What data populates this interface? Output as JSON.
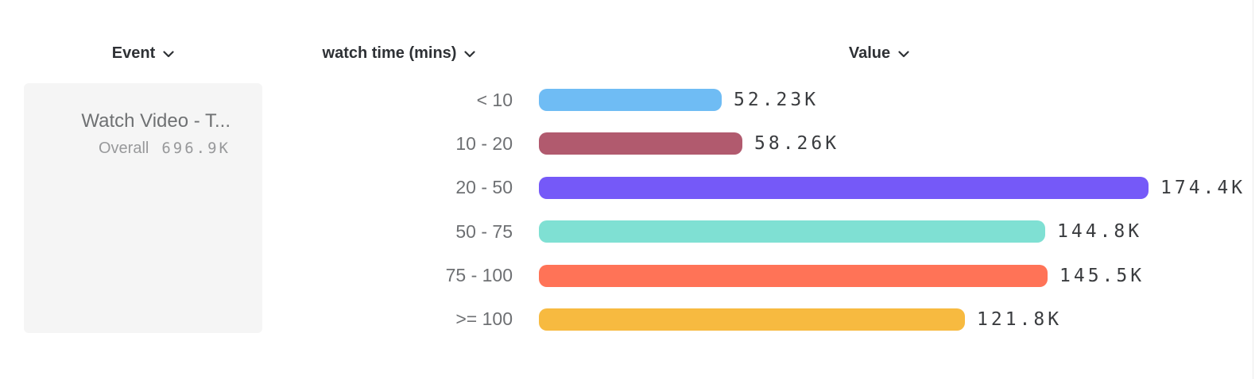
{
  "header": {
    "columns": [
      {
        "label": "Event"
      },
      {
        "label": "watch time (mins)"
      },
      {
        "label": "Value"
      }
    ]
  },
  "event_panel": {
    "title": "Watch Video - T...",
    "overall_label": "Overall",
    "overall_value": "696.9K"
  },
  "chart_data": {
    "type": "bar",
    "orientation": "horizontal",
    "title": "",
    "xlabel": "Value",
    "ylabel": "watch time (mins)",
    "unit": "K",
    "categories": [
      "< 10",
      "10 - 20",
      "20 - 50",
      "50 - 75",
      "75 - 100",
      ">= 100"
    ],
    "values": [
      52.23,
      58.26,
      174.4,
      144.8,
      145.5,
      121.8
    ],
    "value_labels": [
      "52.23K",
      "58.26K",
      "174.4K",
      "144.8K",
      "145.5K",
      "121.8K"
    ],
    "bar_colors": [
      "#6fbcf4",
      "#b15a6e",
      "#7559f8",
      "#7fe0d3",
      "#ff7357",
      "#f7ba40"
    ],
    "xlim": [
      0,
      174.4
    ],
    "grid": false,
    "legend": "none",
    "series_name": "Watch Video - T...",
    "series_total": "696.9K"
  },
  "colors": {
    "header_text": "#2e3135",
    "category_text": "#6e7073",
    "value_text": "#3a3c3f",
    "panel_bg": "#f5f5f5",
    "panel_text": "#6f7173",
    "panel_subtext": "#98999b"
  }
}
